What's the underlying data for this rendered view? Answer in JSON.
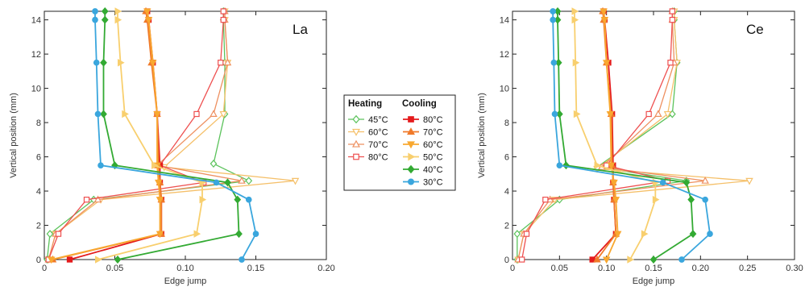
{
  "chart_data": [
    {
      "type": "line",
      "panel_label": "La",
      "xlabel": "Edge jump",
      "ylabel": "Vertical position (mm)",
      "xlim": [
        0,
        0.2
      ],
      "ylim": [
        0,
        14.5
      ],
      "xticks": [
        "0",
        "0.05",
        "0.10",
        "0.15",
        "0.20"
      ],
      "yticks": [
        "0",
        "2",
        "4",
        "6",
        "8",
        "10",
        "12",
        "14"
      ],
      "grid": false,
      "series": [
        {
          "name": "45°C",
          "group": "heating",
          "color": "#5cc35c",
          "marker": "diamond-open",
          "x": [
            0.002,
            0.004,
            0.035,
            0.145,
            0.12,
            0.128,
            0.128,
            0.127,
            0.127
          ],
          "y": [
            0,
            1.5,
            3.5,
            4.6,
            5.6,
            8.5,
            11.5,
            14.0,
            14.5
          ]
        },
        {
          "name": "60°C",
          "group": "heating",
          "color": "#f5c06a",
          "marker": "triangle-down-open",
          "x": [
            0.003,
            0.008,
            0.04,
            0.178,
            0.085,
            0.127,
            0.13,
            0.128,
            0.128
          ],
          "y": [
            0,
            1.5,
            3.5,
            4.6,
            5.4,
            8.5,
            11.5,
            14.0,
            14.5
          ]
        },
        {
          "name": "70°C",
          "group": "heating",
          "color": "#ee9060",
          "marker": "triangle-up-open",
          "x": [
            0.003,
            0.008,
            0.038,
            0.14,
            0.08,
            0.12,
            0.13,
            0.128,
            0.128
          ],
          "y": [
            0,
            1.5,
            3.5,
            4.6,
            5.5,
            8.5,
            11.5,
            14.0,
            14.5
          ]
        },
        {
          "name": "80°C",
          "group": "heating",
          "color": "#ee5050",
          "marker": "square-open",
          "x": [
            0.003,
            0.01,
            0.03,
            0.113,
            0.082,
            0.108,
            0.125,
            0.127,
            0.127
          ],
          "y": [
            0,
            1.5,
            3.5,
            4.5,
            5.5,
            8.5,
            11.5,
            14.0,
            14.5
          ]
        },
        {
          "name": "80°C",
          "group": "cooling",
          "color": "#e41a1c",
          "marker": "square-filled",
          "x": [
            0.018,
            0.083,
            0.083,
            0.082,
            0.082,
            0.08,
            0.077,
            0.074,
            0.073
          ],
          "y": [
            0,
            1.5,
            3.5,
            4.5,
            5.5,
            8.5,
            11.5,
            14.0,
            14.5
          ]
        },
        {
          "name": "70°C",
          "group": "cooling",
          "color": "#f07a2a",
          "marker": "triangle-up-filled",
          "x": [
            0.006,
            0.083,
            0.083,
            0.082,
            0.081,
            0.08,
            0.076,
            0.073,
            0.072
          ],
          "y": [
            0,
            1.5,
            3.5,
            4.5,
            5.5,
            8.5,
            11.5,
            14.0,
            14.5
          ]
        },
        {
          "name": "60°C",
          "group": "cooling",
          "color": "#f8a830",
          "marker": "triangle-down-filled",
          "x": [
            0.005,
            0.082,
            0.082,
            0.081,
            0.08,
            0.08,
            0.077,
            0.074,
            0.073
          ],
          "y": [
            0,
            1.5,
            3.5,
            4.5,
            5.5,
            8.5,
            11.5,
            14.0,
            14.5
          ]
        },
        {
          "name": "50°C",
          "group": "cooling",
          "color": "#f8cf6e",
          "marker": "triangle-right-filled",
          "x": [
            0.038,
            0.108,
            0.112,
            0.112,
            0.078,
            0.057,
            0.054,
            0.052,
            0.052
          ],
          "y": [
            0,
            1.5,
            3.5,
            4.5,
            5.5,
            8.5,
            11.5,
            14.0,
            14.5
          ]
        },
        {
          "name": "40°C",
          "group": "cooling",
          "color": "#33aa33",
          "marker": "diamond-filled",
          "x": [
            0.052,
            0.138,
            0.137,
            0.13,
            0.05,
            0.042,
            0.042,
            0.043,
            0.043
          ],
          "y": [
            0,
            1.5,
            3.5,
            4.5,
            5.5,
            8.5,
            11.5,
            14.0,
            14.5
          ]
        },
        {
          "name": "30°C",
          "group": "cooling",
          "color": "#3aa6dd",
          "marker": "circle-filled",
          "x": [
            0.14,
            0.15,
            0.145,
            0.122,
            0.04,
            0.038,
            0.037,
            0.036,
            0.036
          ],
          "y": [
            0,
            1.5,
            3.5,
            4.5,
            5.5,
            8.5,
            11.5,
            14.0,
            14.5
          ]
        }
      ]
    },
    {
      "type": "line",
      "panel_label": "Ce",
      "xlabel": "Edge jump",
      "ylabel": "Vertical position (mm)",
      "xlim": [
        0,
        0.3
      ],
      "ylim": [
        0,
        14.5
      ],
      "xticks": [
        "0",
        "0.05",
        "0.10",
        "0.15",
        "0.20",
        "0.25",
        "0.30"
      ],
      "yticks": [
        "0",
        "2",
        "4",
        "6",
        "8",
        "10",
        "12",
        "14"
      ],
      "grid": false,
      "series": [
        {
          "name": "45°C",
          "group": "heating",
          "color": "#5cc35c",
          "marker": "diamond-open",
          "x": [
            0.005,
            0.005,
            0.05,
            0.185,
            0.09,
            0.17,
            0.175,
            0.172,
            0.172
          ],
          "y": [
            0,
            1.5,
            3.5,
            4.6,
            5.4,
            8.5,
            11.5,
            14.0,
            14.5
          ]
        },
        {
          "name": "60°C",
          "group": "heating",
          "color": "#f5c06a",
          "marker": "triangle-down-open",
          "x": [
            0.006,
            0.012,
            0.045,
            0.252,
            0.09,
            0.165,
            0.175,
            0.172,
            0.172
          ],
          "y": [
            0,
            1.5,
            3.5,
            4.6,
            5.3,
            8.5,
            11.5,
            14.0,
            14.5
          ]
        },
        {
          "name": "70°C",
          "group": "heating",
          "color": "#ee9060",
          "marker": "triangle-up-open",
          "x": [
            0.006,
            0.012,
            0.04,
            0.205,
            0.095,
            0.155,
            0.172,
            0.17,
            0.17
          ],
          "y": [
            0,
            1.5,
            3.5,
            4.6,
            5.4,
            8.5,
            11.5,
            14.0,
            14.5
          ]
        },
        {
          "name": "80°C",
          "group": "heating",
          "color": "#ee5050",
          "marker": "square-open",
          "x": [
            0.01,
            0.015,
            0.035,
            0.165,
            0.1,
            0.145,
            0.168,
            0.17,
            0.17
          ],
          "y": [
            0,
            1.5,
            3.5,
            4.6,
            5.5,
            8.5,
            11.5,
            14.0,
            14.5
          ]
        },
        {
          "name": "80°C",
          "group": "cooling",
          "color": "#e41a1c",
          "marker": "square-filled",
          "x": [
            0.085,
            0.11,
            0.108,
            0.107,
            0.107,
            0.106,
            0.102,
            0.098,
            0.097
          ],
          "y": [
            0,
            1.5,
            3.5,
            4.5,
            5.5,
            8.5,
            11.5,
            14.0,
            14.5
          ]
        },
        {
          "name": "70°C",
          "group": "cooling",
          "color": "#f07a2a",
          "marker": "triangle-up-filled",
          "x": [
            0.09,
            0.11,
            0.108,
            0.107,
            0.106,
            0.105,
            0.1,
            0.097,
            0.096
          ],
          "y": [
            0,
            1.5,
            3.5,
            4.5,
            5.5,
            8.5,
            11.5,
            14.0,
            14.5
          ]
        },
        {
          "name": "60°C",
          "group": "cooling",
          "color": "#f8a830",
          "marker": "triangle-down-filled",
          "x": [
            0.1,
            0.112,
            0.11,
            0.108,
            0.105,
            0.104,
            0.1,
            0.098,
            0.097
          ],
          "y": [
            0,
            1.5,
            3.5,
            4.5,
            5.5,
            8.5,
            11.5,
            14.0,
            14.5
          ]
        },
        {
          "name": "50°C",
          "group": "cooling",
          "color": "#f8cf6e",
          "marker": "triangle-right-filled",
          "x": [
            0.125,
            0.14,
            0.152,
            0.152,
            0.09,
            0.068,
            0.067,
            0.066,
            0.066
          ],
          "y": [
            0,
            1.5,
            3.5,
            4.5,
            5.5,
            8.5,
            11.5,
            14.0,
            14.5
          ]
        },
        {
          "name": "40°C",
          "group": "cooling",
          "color": "#33aa33",
          "marker": "diamond-filled",
          "x": [
            0.15,
            0.192,
            0.19,
            0.185,
            0.057,
            0.05,
            0.049,
            0.048,
            0.048
          ],
          "y": [
            0,
            1.5,
            3.5,
            4.5,
            5.5,
            8.5,
            11.5,
            14.0,
            14.5
          ]
        },
        {
          "name": "30°C",
          "group": "cooling",
          "color": "#3aa6dd",
          "marker": "circle-filled",
          "x": [
            0.18,
            0.21,
            0.205,
            0.16,
            0.05,
            0.045,
            0.044,
            0.043,
            0.043
          ],
          "y": [
            0,
            1.5,
            3.5,
            4.5,
            5.5,
            8.5,
            11.5,
            14.0,
            14.5
          ]
        }
      ]
    }
  ],
  "legend": {
    "placement": "center",
    "heating_title": "Heating",
    "cooling_title": "Cooling",
    "heating": [
      {
        "label": "45°C",
        "color": "#5cc35c",
        "marker": "diamond-open"
      },
      {
        "label": "60°C",
        "color": "#f5c06a",
        "marker": "triangle-down-open"
      },
      {
        "label": "70°C",
        "color": "#ee9060",
        "marker": "triangle-up-open"
      },
      {
        "label": "80°C",
        "color": "#ee5050",
        "marker": "square-open"
      }
    ],
    "cooling": [
      {
        "label": "80°C",
        "color": "#e41a1c",
        "marker": "square-filled"
      },
      {
        "label": "70°C",
        "color": "#f07a2a",
        "marker": "triangle-up-filled"
      },
      {
        "label": "60°C",
        "color": "#f8a830",
        "marker": "triangle-down-filled"
      },
      {
        "label": "50°C",
        "color": "#f8cf6e",
        "marker": "triangle-right-filled"
      },
      {
        "label": "40°C",
        "color": "#33aa33",
        "marker": "diamond-filled"
      },
      {
        "label": "30°C",
        "color": "#3aa6dd",
        "marker": "circle-filled"
      }
    ]
  }
}
